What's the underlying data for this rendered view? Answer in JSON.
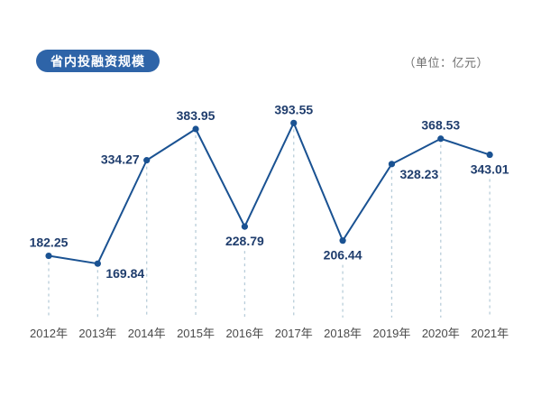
{
  "header": {
    "title": "省内投融资规模",
    "unit_label": "（单位：亿元）"
  },
  "chart_data": {
    "type": "line",
    "title": "省内投融资规模",
    "unit": "亿元",
    "categories": [
      "2012年",
      "2013年",
      "2014年",
      "2015年",
      "2016年",
      "2017年",
      "2018年",
      "2019年",
      "2020年",
      "2021年"
    ],
    "values": [
      182.25,
      169.84,
      334.27,
      383.95,
      228.79,
      393.55,
      206.44,
      328.23,
      368.53,
      343.01
    ],
    "xlabel": "",
    "ylabel": "",
    "ylim": [
      84,
      394
    ],
    "grid": "vertical-dashed-drop-lines",
    "legend_position": "none",
    "markers": "filled-circle",
    "data_labels_visible": true,
    "label_positions": [
      "above",
      "below-right",
      "left",
      "above",
      "below",
      "above",
      "below",
      "below-right",
      "above",
      "below"
    ]
  },
  "colors": {
    "background": "#ffffff",
    "line": "#1a5292",
    "marker": "#1a5292",
    "data_label": "#1f3d6d",
    "axis_label": "#4a4a4a",
    "drop_line": "#b8cdd9",
    "badge_bg": "#2e64a8",
    "badge_text": "#ffffff",
    "unit_text": "#6e6e6e"
  }
}
